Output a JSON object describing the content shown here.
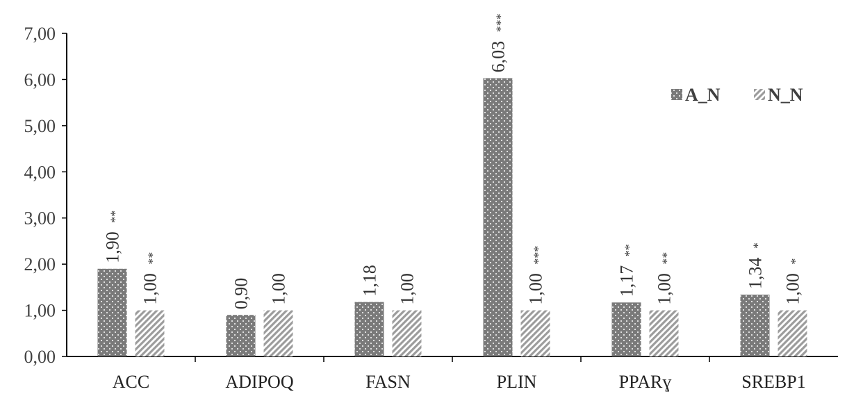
{
  "chart_data": {
    "type": "bar",
    "categories": [
      "ACC",
      "ADIPOQ",
      "FASN",
      "PLIN",
      "PPARɣ",
      "SREBP1"
    ],
    "series": [
      {
        "name": "A_N",
        "values": [
          1.9,
          0.9,
          1.18,
          6.03,
          1.17,
          1.34
        ],
        "labels": [
          "1,90",
          "0,90",
          "1,18",
          "6,03",
          "1,17",
          "1,34"
        ],
        "significance": [
          "**",
          "",
          "",
          "***",
          "**",
          "*"
        ],
        "pattern": "dots",
        "color": "#7f7f7f"
      },
      {
        "name": "N_N",
        "values": [
          1.0,
          1.0,
          1.0,
          1.0,
          1.0,
          1.0
        ],
        "labels": [
          "1,00",
          "1,00",
          "1,00",
          "1,00",
          "1,00",
          "1,00"
        ],
        "significance": [
          "**",
          "",
          "",
          "***",
          "**",
          "*"
        ],
        "pattern": "diagonal-stripes",
        "color": "#a6a6a6"
      }
    ],
    "yticks": [
      "0,00",
      "1,00",
      "2,00",
      "3,00",
      "4,00",
      "5,00",
      "6,00",
      "7,00"
    ],
    "ylim": [
      0,
      7
    ],
    "grid": false,
    "legend_position": "top-right"
  }
}
